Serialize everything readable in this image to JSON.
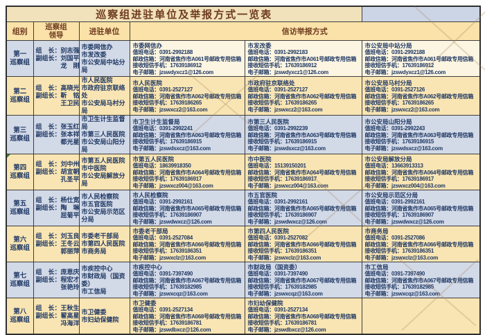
{
  "title": "巡察组进驻单位及举报方式一览表",
  "header": {
    "group": "组别",
    "leaders_line1": "巡察组",
    "leaders_line2": "领导",
    "units": "进驻单位",
    "methods": "信访举报方式"
  },
  "field_labels": {
    "phone": "值班电话：",
    "mailbox": "邮政信箱：",
    "sms": "接收短信手机：",
    "email": "电子邮箱："
  },
  "theme": {
    "title_bg": "#F1E2BB",
    "header_bg": "#FAE2A9",
    "cream_row_bg": "#F9E5B3",
    "blue_row_bg": "#D2D9E7",
    "header_text": "#6E3A1E",
    "body_text": "#1F3864",
    "border": "#3d3d3d"
  },
  "rows": [
    {
      "tone": "row-mixed",
      "group_lines": [
        "第一",
        "巡察组"
      ],
      "leader_lines": [
        "组　长：别志强",
        "副组长：刘国平",
        "　　　　龙　刚"
      ],
      "units": [
        "市委网信办",
        "市发改委",
        "市公安局中站分局"
      ],
      "cells": [
        {
          "name": "市委网信办",
          "phone": "0391-2992188",
          "mailbox": "河南省焦作市A061号邮政专用信箱",
          "sms": "17639186912",
          "email": "jzswdyxcz1@126.com"
        },
        {
          "name": "市发改委",
          "phone": "0391-2992183",
          "mailbox": "河南省焦作市A061号邮政专用信箱",
          "sms": "17639186912",
          "email": "jzswdyxcz1@126.com"
        },
        {
          "name": "市公安局中站分局",
          "phone": "0391-2992188",
          "mailbox": "河南省焦作市A061号邮政专用信箱",
          "sms": "17639186912",
          "email": "jzswdyxcz1@126.com"
        }
      ]
    },
    {
      "tone": "row-cream",
      "group_lines": [
        "第二",
        "巡察组"
      ],
      "leader_lines": [
        "组　长：高晓光",
        "副组长：靳　铭",
        "　　　　王卫民"
      ],
      "units": [
        "市人民医院",
        "市政府驻京联络处",
        "市公安局马村分局"
      ],
      "cells": [
        {
          "name": "市人民医院",
          "phone": "0391-2527127",
          "mailbox": "河南省焦作市A062号邮政专用信箱",
          "sms": "17639186265",
          "email": "jzswxcz2@163.com"
        },
        {
          "name": "市政府驻京联络处",
          "phone": "0391-2527127",
          "mailbox": "河南省焦作市A062号邮政专用信箱",
          "sms": "17639186265",
          "email": "jzswxcz2@163.com"
        },
        {
          "name": "市公安局马村分局",
          "phone": "0391-2527126",
          "mailbox": "河南省焦作市A062号邮政专用信箱",
          "sms": "17639186265",
          "email": "jzswxcz2@163.com"
        }
      ]
    },
    {
      "tone": "row-blue",
      "group_lines": [
        "第三",
        "巡察组"
      ],
      "leader_lines": [
        "组　长：张玉红",
        "副组长：张本祥",
        "　　　　都光星"
      ],
      "units": [
        "市卫生计生监督局",
        "市第三人民医院",
        "市公安局山阳分局"
      ],
      "cells": [
        {
          "name": "市卫生计生监督局",
          "phone": "0391-2992241",
          "mailbox": "河南省焦作市A063号邮政专用信箱",
          "sms": "17639186915",
          "email": "jzswdsxcz@163.com"
        },
        {
          "name": "市第三人民医院",
          "phone": "0391-2992239",
          "mailbox": "河南省焦作市A063号邮政专用信箱",
          "sms": "17639186915",
          "email": "jzswdsxcz@163.com"
        },
        {
          "name": "市公安局山阳分局",
          "phone": "0391-2992243",
          "mailbox": "河南省焦作市A063号邮政专用信箱",
          "sms": "17639186915",
          "email": "jzswdsxcz@163.com"
        }
      ]
    },
    {
      "tone": "row-cream",
      "group_lines": [
        "第四",
        "巡察组"
      ],
      "leader_lines": [
        "组　长：刘中州",
        "副组长：胡宜朝",
        "　　　　孔圣平"
      ],
      "units": [
        "市第五人民医院",
        "市中医院",
        "市公安局解放分局"
      ],
      "corner_mark": true,
      "cells": [
        {
          "name": "市第五人民医院",
          "phone": "18639918350",
          "mailbox": "河南省焦作市A064号邮政专用信箱",
          "sms": "17639186917",
          "email": "jzswxcz004@163.com"
        },
        {
          "name": "市中医院",
          "phone": "15139150201",
          "mailbox": "河南省焦作市A064号邮政专用信箱",
          "sms": "17639186917",
          "email": "jzswxcz004@163.com"
        },
        {
          "name": "市公安局解放分局",
          "phone": "13663913313",
          "mailbox": "河南省焦作市A064号邮政专用信箱",
          "sms": "17639186917",
          "email": "jzswxcz004@163.com"
        }
      ]
    },
    {
      "tone": "row-blue",
      "group_lines": [
        "第五",
        "巡察组"
      ],
      "leader_lines": [
        "组　长：杨仕宽",
        "副组长：陶　琳",
        "　　　　屈菊平"
      ],
      "units": [
        "市人民检察院",
        "市五官医院",
        "市公安局示范区分局"
      ],
      "cells": [
        {
          "name": "市人民检察院",
          "phone": "0391-2992161",
          "mailbox": "河南省焦作市A065号邮政专用信箱",
          "sms": "17639186907",
          "email": "jzswdwxcz@126.com"
        },
        {
          "name": "市五官医院",
          "phone": "0391-2992161",
          "mailbox": "河南省焦作市A065号邮政专用信箱",
          "sms": "17639186907",
          "email": "jzswdwxcz@126.com"
        },
        {
          "name": "市公安局示范区分局",
          "phone": "0391-2992161",
          "mailbox": "河南省焦作市A065号邮政专用信箱",
          "sms": "17639186907",
          "email": "jzswdwxcz@126.com"
        }
      ]
    },
    {
      "tone": "row-cream",
      "group_lines": [
        "第六",
        "巡察组"
      ],
      "leader_lines": [
        "组　长：刘玉良",
        "副组长：王冬云",
        "　　　　郭丽萍"
      ],
      "units": [
        "市委老干部局",
        "市第四人民医院",
        "市商务局"
      ],
      "cells": [
        {
          "name": "市委老干部局",
          "phone": "0391-2527084",
          "mailbox": "河南省焦作市A066号邮政专用信箱",
          "sms": "17639186351",
          "email": "jzswxclz@163.com"
        },
        {
          "name": "市第四人民医院",
          "phone": "0391-2527082",
          "mailbox": "河南省焦作市A066号邮政专用信箱",
          "sms": "17639186351",
          "email": "jzswxclz@163.com"
        },
        {
          "name": "市商务局",
          "phone": "0391-2527086",
          "mailbox": "河南省焦作市A066号邮政专用信箱",
          "sms": "17639186351",
          "email": "jzswxclz@163.com"
        }
      ]
    },
    {
      "tone": "row-blue",
      "group_lines": [
        "第七",
        "巡察组"
      ],
      "leader_lines": [
        "组　长：庞恩庆",
        "副组长：程宏才",
        "　　　　张艳玲"
      ],
      "units": [
        "市疾控中心",
        "市财政局（国资委）",
        "市工信局"
      ],
      "cells": [
        {
          "name": "市疾控中心",
          "phone": "0391-7397490",
          "mailbox": "河南省焦作市A067号邮政专用信箱",
          "sms": "17639182985",
          "email": "jzswxcqz@163.com"
        },
        {
          "name": "市财政局（国资委）",
          "phone": "0391-7397490",
          "mailbox": "河南省焦作市A067号邮政专用信箱",
          "sms": "17639182985",
          "email": "jzswxcqz@163.com"
        },
        {
          "name": "市工信局",
          "phone": "0391-7397490",
          "mailbox": "河南省焦作市A067号邮政专用信箱",
          "sms": "17639182985",
          "email": "jzswxcqz@163.com"
        }
      ]
    },
    {
      "tone": "row-cream",
      "group_lines": [
        "第八",
        "巡察组"
      ],
      "leader_lines": [
        "组　长：王秋生",
        "副组长：翟高星",
        "　　　　冯海洋"
      ],
      "units": [
        "市卫健委",
        "市妇幼保健院"
      ],
      "cells": [
        {
          "name": "市卫健委",
          "phone": "0391-2527134",
          "mailbox": "河南省焦作市A068号邮政专用信箱",
          "sms": "17639186781",
          "email": "jzswdbxcz@126.com"
        },
        {
          "name": "市妇幼保健院",
          "phone": "0391-2527134",
          "mailbox": "河南省焦作市A068号邮政专用信箱",
          "sms": "17639186781",
          "email": "jzswdbxcz@126.com"
        },
        null
      ]
    }
  ]
}
